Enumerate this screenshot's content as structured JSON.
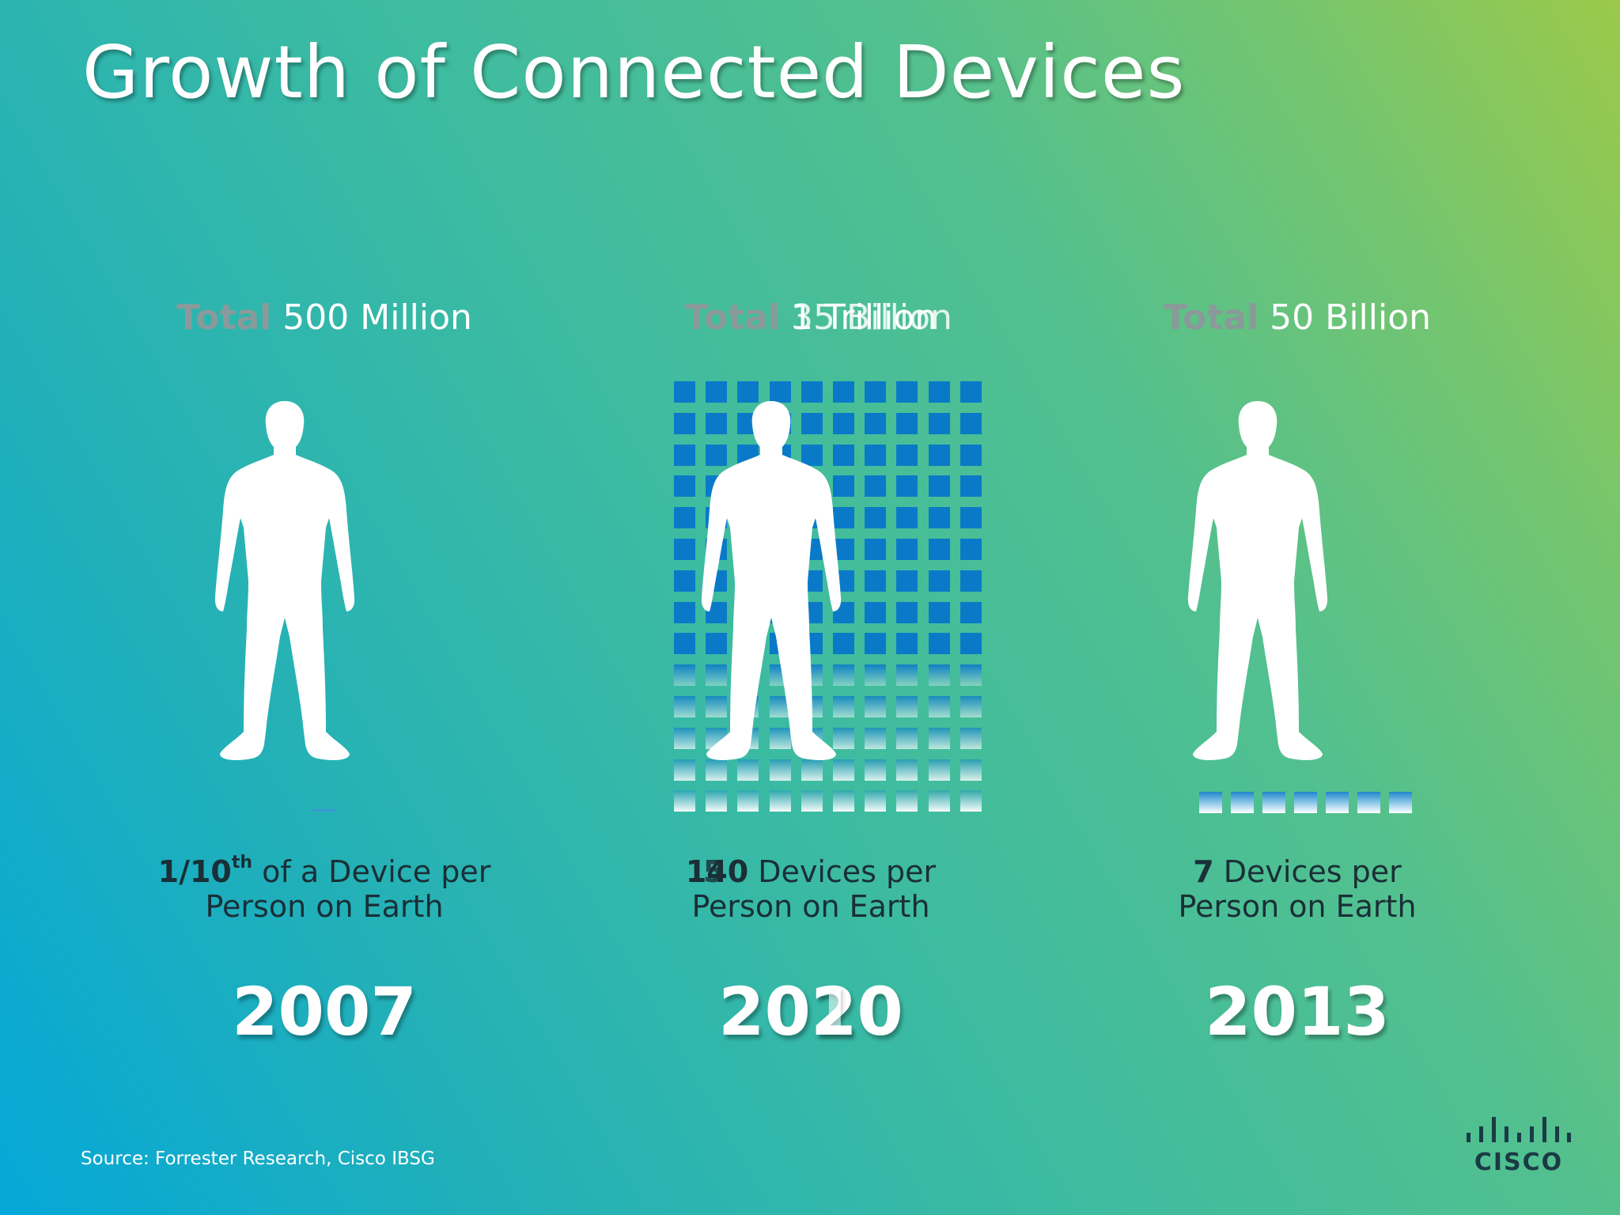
{
  "slide": {
    "title": "Growth of Connected Devices",
    "source": "Source: Forrester Research, Cisco IBSG",
    "logo_text": "CISCO",
    "colors": {
      "device_square": "#0a7ac8",
      "total_label": "#8a9a9a",
      "per_person_text": "#1a2f36"
    }
  },
  "columns": [
    {
      "total_word": "Total",
      "total_value": "500 Million",
      "ratio_bold": "1/10",
      "ratio_sup": "th",
      "ratio_rest": " of a Device per",
      "line2": "Person on Earth",
      "year": "2007",
      "figure_icon": "person-silhouette-icon"
    },
    {
      "total_word": "Total",
      "total_value": "1 Trillion",
      "total_value_overlay": "35 Billion",
      "ratio_bold": "140",
      "ratio_rest": " Devices per",
      "ratio_overlay": "5",
      "line2": "Person on Earth",
      "year": "2020",
      "year_overlay": "1",
      "figure_icon": "person-silhouette-icon"
    },
    {
      "total_word": "Total",
      "total_value": "50 Billion",
      "ratio_bold": "7",
      "ratio_rest": " Devices per",
      "line2": "Person on Earth",
      "year": "2013",
      "figure_icon": "person-silhouette-icon"
    }
  ]
}
